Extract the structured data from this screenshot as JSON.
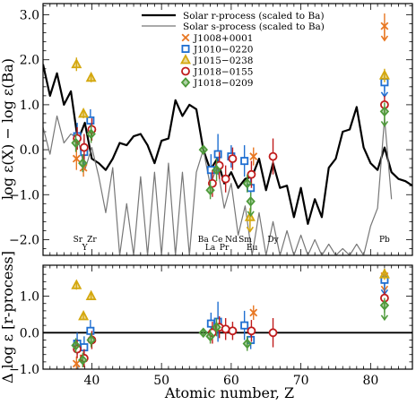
{
  "chart_data": [
    {
      "type": "line+scatter",
      "ylabel": "log ε(X) − log ε(Ba)",
      "xlim": [
        33,
        86
      ],
      "ylim": [
        -2.35,
        3.25
      ],
      "yticks": [
        -2.0,
        -1.0,
        0.0,
        1.0,
        2.0,
        3.0
      ],
      "ytick_labels": [
        "−2.0",
        "−1.0",
        "0.0",
        "1.0",
        "2.0",
        "3.0"
      ],
      "xticks": [
        40,
        50,
        60,
        70,
        80
      ],
      "legend_position": "top-center",
      "element_labels": [
        {
          "z": 38,
          "text": "Sr",
          "row": 0
        },
        {
          "z": 39,
          "text": "Y",
          "row": 1
        },
        {
          "z": 40,
          "text": "Zr",
          "row": 0
        },
        {
          "z": 56,
          "text": "Ba",
          "row": 0
        },
        {
          "z": 57,
          "text": "La",
          "row": 1
        },
        {
          "z": 58,
          "text": "Ce",
          "row": 0
        },
        {
          "z": 59,
          "text": "Pr",
          "row": 1
        },
        {
          "z": 60,
          "text": "Nd",
          "row": 0
        },
        {
          "z": 62,
          "text": "Sm",
          "row": 0
        },
        {
          "z": 63,
          "text": "Eu",
          "row": 1
        },
        {
          "z": 66,
          "text": "Dy",
          "row": 0
        },
        {
          "z": 82,
          "text": "Pb",
          "row": 0
        }
      ],
      "lines": [
        {
          "name": "Solar r-process (scaled to Ba)",
          "color": "#000000",
          "width": 2.2,
          "x": [
            33,
            34,
            35,
            36,
            37,
            38,
            39,
            40,
            41,
            42,
            43,
            44,
            45,
            46,
            47,
            48,
            49,
            50,
            51,
            52,
            53,
            54,
            55,
            56,
            57,
            58,
            59,
            60,
            61,
            62,
            63,
            64,
            65,
            66,
            67,
            68,
            69,
            70,
            71,
            72,
            73,
            74,
            75,
            76,
            77,
            78,
            79,
            80,
            81,
            82,
            83,
            84,
            85,
            86
          ],
          "y": [
            1.9,
            1.2,
            1.7,
            1.0,
            1.3,
            0.2,
            0.6,
            -0.2,
            -0.3,
            -0.45,
            -0.2,
            0.15,
            0.1,
            0.3,
            0.35,
            0.1,
            -0.3,
            0.2,
            0.25,
            1.1,
            0.75,
            1.0,
            0.9,
            0.0,
            -0.45,
            -0.2,
            -0.75,
            -0.5,
            -0.85,
            -0.65,
            -0.6,
            -0.2,
            -0.9,
            -0.3,
            -0.85,
            -0.8,
            -1.5,
            -0.85,
            -1.65,
            -1.1,
            -1.5,
            -0.4,
            -0.2,
            0.4,
            0.45,
            0.95,
            0.05,
            -0.3,
            -0.45,
            0.05,
            -0.5,
            -0.65,
            -0.7,
            -0.8
          ]
        },
        {
          "name": "Solar s-process (scaled to Ba)",
          "color": "#777777",
          "width": 1.2,
          "x": [
            33,
            34,
            35,
            36,
            37,
            38,
            39,
            40,
            41,
            42,
            43,
            44,
            45,
            46,
            47,
            48,
            49,
            50,
            51,
            52,
            53,
            54,
            55,
            56,
            57,
            58,
            59,
            60,
            61,
            62,
            63,
            64,
            65,
            66,
            67,
            68,
            69,
            70,
            71,
            72,
            73,
            74,
            75,
            76,
            77,
            78,
            79,
            80,
            81,
            82,
            83
          ],
          "y": [
            0.5,
            -0.1,
            0.75,
            0.15,
            0.35,
            0.25,
            -0.45,
            0.05,
            -0.6,
            -1.4,
            -0.4,
            -2.35,
            -1.2,
            -2.35,
            -0.6,
            -2.35,
            -0.5,
            -2.35,
            -0.3,
            -2.35,
            -0.5,
            -2.35,
            -0.5,
            0.0,
            -0.8,
            -0.35,
            -1.3,
            -0.75,
            -1.9,
            -1.25,
            -2.35,
            -1.4,
            -2.35,
            -1.6,
            -2.35,
            -1.8,
            -2.35,
            -1.9,
            -2.35,
            -2.0,
            -2.35,
            -2.1,
            -2.35,
            -2.2,
            -2.35,
            -2.1,
            -2.35,
            -1.7,
            -1.3,
            0.7,
            -1.1
          ]
        }
      ],
      "series": [
        {
          "name": "J1008+0001",
          "color": "#e87722",
          "marker": "x",
          "points": [
            {
              "z": 37.8,
              "y": -0.2,
              "err": 0.25
            },
            {
              "z": 38.8,
              "y": -0.4,
              "err": 0.2
            },
            {
              "z": 63.2,
              "y": -0.15,
              "err": 0.2
            },
            {
              "z": 82,
              "y": 2.75,
              "err": 0.28,
              "ul": true
            }
          ]
        },
        {
          "name": "J1010−0220",
          "color": "#1f6fd1",
          "marker": "square",
          "points": [
            {
              "z": 37.9,
              "y": 0.3,
              "err": 0.3
            },
            {
              "z": 38.9,
              "y": -0.05,
              "err": 0.3
            },
            {
              "z": 39.8,
              "y": 0.65,
              "err": 0.25
            },
            {
              "z": 57.1,
              "y": -0.45,
              "err": 0.35
            },
            {
              "z": 58.1,
              "y": -0.1,
              "err": 0.45
            },
            {
              "z": 60.0,
              "y": -0.15,
              "err": 0.25
            },
            {
              "z": 61.9,
              "y": -0.25,
              "err": 0.35
            },
            {
              "z": 62.8,
              "y": -0.85,
              "err": 0.25
            },
            {
              "z": 82,
              "y": 1.5,
              "err": 0.2,
              "ul": true
            }
          ]
        },
        {
          "name": "J1015−0238",
          "color": "#d4a80f",
          "marker": "triangle",
          "points": [
            {
              "z": 37.8,
              "y": 1.9,
              "err": 0.15
            },
            {
              "z": 38.8,
              "y": 0.8,
              "err": 0.1
            },
            {
              "z": 39.9,
              "y": 1.6,
              "err": 0.1
            },
            {
              "z": 62.7,
              "y": -1.5,
              "err": 0.2,
              "ul": true
            },
            {
              "z": 82,
              "y": 1.65,
              "err": 0.15
            }
          ]
        },
        {
          "name": "J1018−0155",
          "color": "#c01c1c",
          "marker": "circle",
          "points": [
            {
              "z": 37.9,
              "y": 0.25,
              "err": 0.25
            },
            {
              "z": 38.9,
              "y": 0.05,
              "err": 0.3
            },
            {
              "z": 40.0,
              "y": 0.45,
              "err": 0.25
            },
            {
              "z": 57.3,
              "y": -0.75,
              "err": 0.3
            },
            {
              "z": 58.3,
              "y": -0.35,
              "err": 0.3
            },
            {
              "z": 59.2,
              "y": -0.65,
              "err": 0.3
            },
            {
              "z": 60.2,
              "y": -0.2,
              "err": 0.25
            },
            {
              "z": 62.9,
              "y": -0.55,
              "err": 0.3
            },
            {
              "z": 66.0,
              "y": -0.15,
              "err": 0.4
            },
            {
              "z": 82,
              "y": 1.0,
              "err": 0.2
            }
          ]
        },
        {
          "name": "J1018−0209",
          "color": "#4e9a3a",
          "marker": "diamond",
          "points": [
            {
              "z": 37.7,
              "y": 0.15,
              "err": 0.2
            },
            {
              "z": 38.7,
              "y": -0.3,
              "err": 0.2
            },
            {
              "z": 39.9,
              "y": 0.35,
              "err": 0.2
            },
            {
              "z": 56.0,
              "y": 0.0,
              "err": 0.1
            },
            {
              "z": 57.0,
              "y": -0.9,
              "err": 0.2
            },
            {
              "z": 57.9,
              "y": -0.45,
              "err": 0.25
            },
            {
              "z": 62.3,
              "y": -0.75,
              "err": 0.2
            },
            {
              "z": 62.8,
              "y": -1.15,
              "err": 0.2,
              "ul": true
            },
            {
              "z": 82,
              "y": 0.85,
              "err": 0.2,
              "ul": true
            }
          ]
        }
      ]
    },
    {
      "type": "scatter",
      "xlabel": "Atomic number, Z",
      "ylabel": "Δ log ε [r-process]",
      "xlim": [
        33,
        86
      ],
      "ylim": [
        -1.0,
        1.85
      ],
      "yticks": [
        -1.0,
        0.0,
        1.0
      ],
      "ytick_labels": [
        "−1.0",
        "0.0",
        "1.0"
      ],
      "xticks": [
        40,
        50,
        60,
        70,
        80
      ],
      "xtick_labels": [
        "40",
        "50",
        "60",
        "70",
        "80"
      ],
      "reference_line": 0.0,
      "series": [
        {
          "name": "J1008+0001",
          "color": "#e87722",
          "marker": "x",
          "points": [
            {
              "z": 37.8,
              "y": -0.85,
              "err": 0.2
            },
            {
              "z": 38.8,
              "y": -0.7,
              "err": 0.2
            },
            {
              "z": 63.2,
              "y": 0.55,
              "err": 0.2
            },
            {
              "z": 82,
              "y": 1.55,
              "err": 0.2,
              "ul": true
            }
          ]
        },
        {
          "name": "J1010−0220",
          "color": "#1f6fd1",
          "marker": "square",
          "points": [
            {
              "z": 37.9,
              "y": -0.3,
              "err": 0.3
            },
            {
              "z": 38.9,
              "y": -0.4,
              "err": 0.3
            },
            {
              "z": 39.8,
              "y": 0.05,
              "err": 0.3
            },
            {
              "z": 57.1,
              "y": 0.25,
              "err": 0.3
            },
            {
              "z": 58.1,
              "y": 0.3,
              "err": 0.55
            },
            {
              "z": 61.9,
              "y": 0.2,
              "err": 0.4
            },
            {
              "z": 62.8,
              "y": -0.2,
              "err": 0.25
            },
            {
              "z": 82,
              "y": 1.45,
              "err": 0.2,
              "ul": true
            }
          ]
        },
        {
          "name": "J1015−0238",
          "color": "#d4a80f",
          "marker": "triangle",
          "points": [
            {
              "z": 37.8,
              "y": 1.3,
              "err": 0.12
            },
            {
              "z": 38.8,
              "y": 0.45,
              "err": 0.1
            },
            {
              "z": 39.9,
              "y": 1.0,
              "err": 0.1
            },
            {
              "z": 82,
              "y": 1.6,
              "err": 0.15
            }
          ]
        },
        {
          "name": "J1018−0155",
          "color": "#c01c1c",
          "marker": "circle",
          "points": [
            {
              "z": 37.9,
              "y": -0.45,
              "err": 0.25
            },
            {
              "z": 38.9,
              "y": -0.7,
              "err": 0.25
            },
            {
              "z": 40.0,
              "y": -0.2,
              "err": 0.25
            },
            {
              "z": 57.3,
              "y": 0.0,
              "err": 0.3
            },
            {
              "z": 58.3,
              "y": 0.15,
              "err": 0.3
            },
            {
              "z": 59.2,
              "y": 0.1,
              "err": 0.3
            },
            {
              "z": 60.2,
              "y": 0.05,
              "err": 0.25
            },
            {
              "z": 62.9,
              "y": 0.05,
              "err": 0.3
            },
            {
              "z": 66.0,
              "y": 0.0,
              "err": 0.4
            },
            {
              "z": 82,
              "y": 0.95,
              "err": 0.2
            }
          ]
        },
        {
          "name": "J1018−0209",
          "color": "#4e9a3a",
          "marker": "diamond",
          "points": [
            {
              "z": 37.7,
              "y": -0.35,
              "err": 0.2
            },
            {
              "z": 38.7,
              "y": -0.75,
              "err": 0.2
            },
            {
              "z": 39.9,
              "y": -0.2,
              "err": 0.2
            },
            {
              "z": 56.0,
              "y": 0.0,
              "err": 0.1
            },
            {
              "z": 57.0,
              "y": -0.1,
              "err": 0.2
            },
            {
              "z": 57.9,
              "y": 0.15,
              "err": 0.25
            },
            {
              "z": 62.3,
              "y": -0.3,
              "err": 0.2
            },
            {
              "z": 82,
              "y": 0.75,
              "err": 0.2,
              "ul": true
            }
          ]
        }
      ]
    }
  ]
}
